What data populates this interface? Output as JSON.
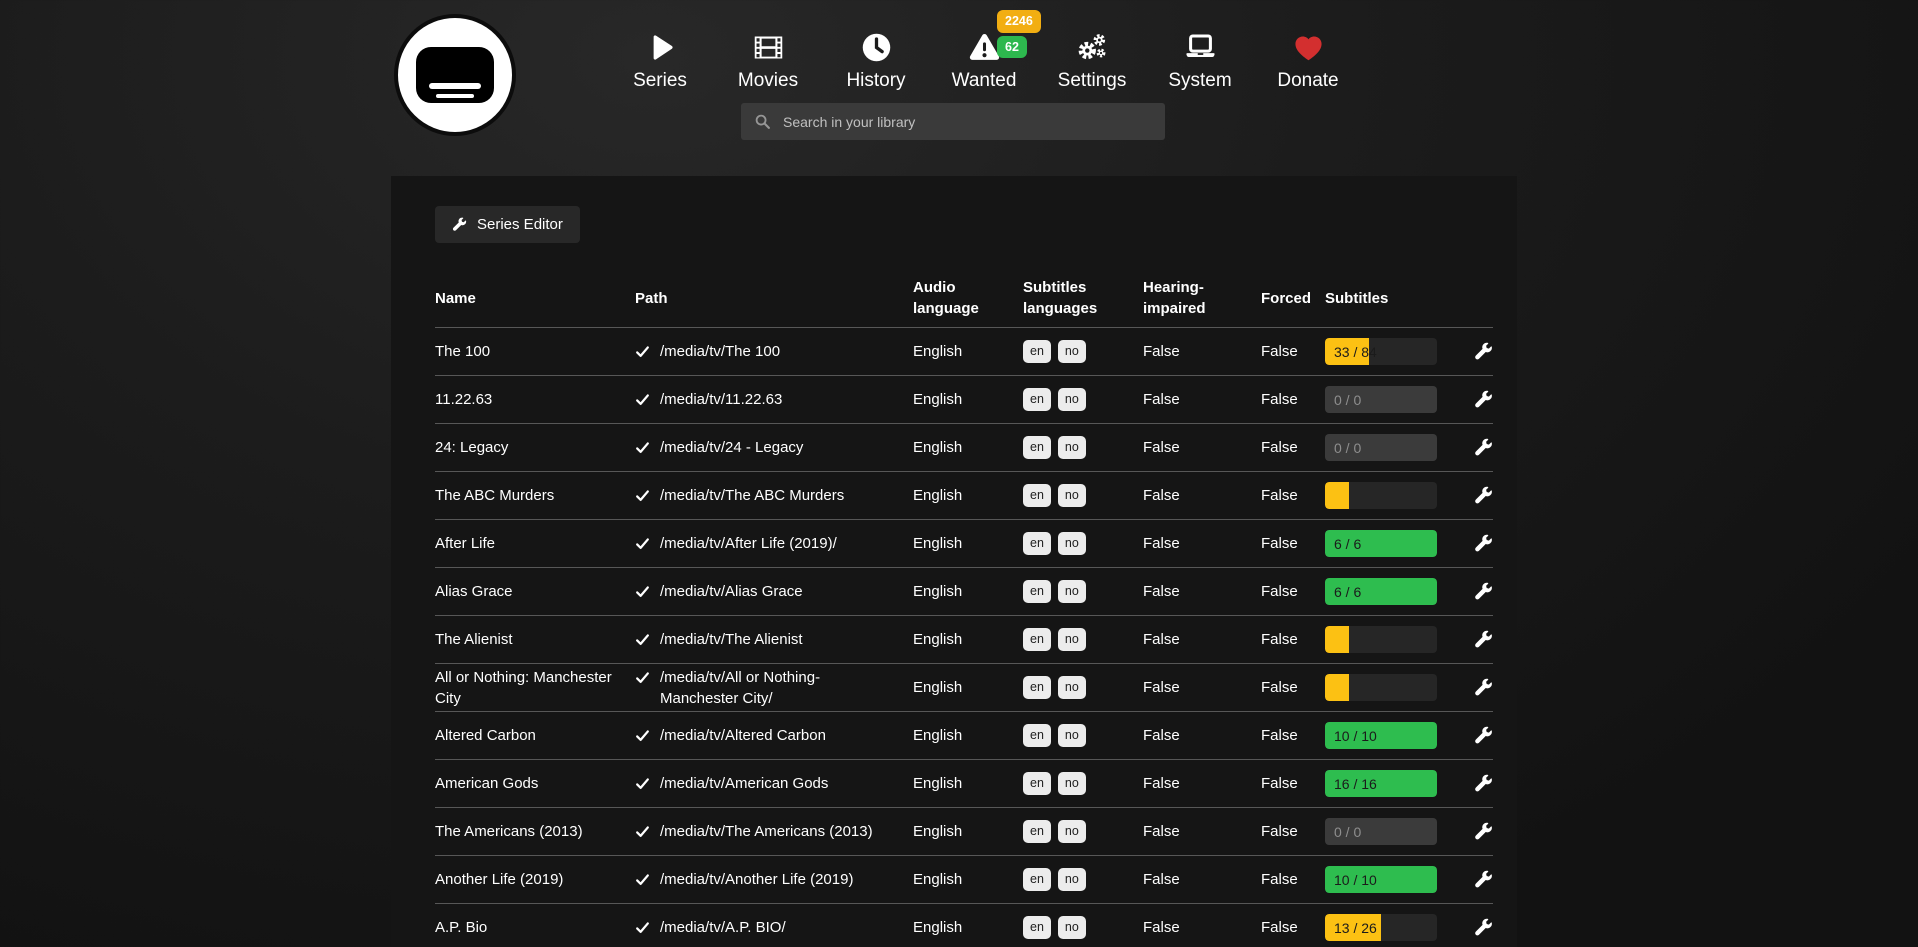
{
  "header": {
    "logo_name": "bazarr-logo",
    "nav_items": [
      {
        "label": "Series",
        "icon": "play"
      },
      {
        "label": "Movies",
        "icon": "film"
      },
      {
        "label": "History",
        "icon": "clock"
      },
      {
        "label": "Wanted",
        "icon": "warning",
        "badges": [
          {
            "value": "2246",
            "color": "#f2ae12"
          },
          {
            "value": "62",
            "color": "#2db84e"
          }
        ]
      },
      {
        "label": "Settings",
        "icon": "gears"
      },
      {
        "label": "System",
        "icon": "laptop"
      },
      {
        "label": "Donate",
        "icon": "heart",
        "icon_color": "#d32f2f"
      }
    ],
    "search": {
      "placeholder": "Search in your library"
    }
  },
  "toolbar": {
    "series_editor_label": "Series Editor"
  },
  "table": {
    "columns": [
      "Name",
      "Path",
      "Audio language",
      "Subtitles languages",
      "Hearing-impaired",
      "Forced",
      "Subtitles"
    ],
    "rows": [
      {
        "name": "The 100",
        "path": "/media/tv/The 100",
        "audio_language": "English",
        "subtitles_languages": [
          "en",
          "no"
        ],
        "hearing_impaired": "False",
        "forced": "False",
        "subtitles_progress": {
          "label": "33 / 84",
          "percent": 39,
          "state": "warning"
        }
      },
      {
        "name": "11.22.63",
        "path": "/media/tv/11.22.63",
        "audio_language": "English",
        "subtitles_languages": [
          "en",
          "no"
        ],
        "hearing_impaired": "False",
        "forced": "False",
        "subtitles_progress": {
          "label": "0 / 0",
          "percent": 0,
          "state": "empty"
        }
      },
      {
        "name": "24: Legacy",
        "path": "/media/tv/24 - Legacy",
        "audio_language": "English",
        "subtitles_languages": [
          "en",
          "no"
        ],
        "hearing_impaired": "False",
        "forced": "False",
        "subtitles_progress": {
          "label": "0 / 0",
          "percent": 0,
          "state": "empty"
        }
      },
      {
        "name": "The ABC Murders",
        "path": "/media/tv/The ABC Murders",
        "audio_language": "English",
        "subtitles_languages": [
          "en",
          "no"
        ],
        "hearing_impaired": "False",
        "forced": "False",
        "subtitles_progress": {
          "label": "",
          "percent": 21,
          "state": "warning"
        }
      },
      {
        "name": "After Life",
        "path": "/media/tv/After Life (2019)/",
        "audio_language": "English",
        "subtitles_languages": [
          "en",
          "no"
        ],
        "hearing_impaired": "False",
        "forced": "False",
        "subtitles_progress": {
          "label": "6 / 6",
          "percent": 100,
          "state": "success"
        }
      },
      {
        "name": "Alias Grace",
        "path": "/media/tv/Alias Grace",
        "audio_language": "English",
        "subtitles_languages": [
          "en",
          "no"
        ],
        "hearing_impaired": "False",
        "forced": "False",
        "subtitles_progress": {
          "label": "6 / 6",
          "percent": 100,
          "state": "success"
        }
      },
      {
        "name": "The Alienist",
        "path": "/media/tv/The Alienist",
        "audio_language": "English",
        "subtitles_languages": [
          "en",
          "no"
        ],
        "hearing_impaired": "False",
        "forced": "False",
        "subtitles_progress": {
          "label": "",
          "percent": 21,
          "state": "warning"
        }
      },
      {
        "name": "All or Nothing: Manchester City",
        "path": "/media/tv/All or Nothing- Manchester City/",
        "audio_language": "English",
        "subtitles_languages": [
          "en",
          "no"
        ],
        "hearing_impaired": "False",
        "forced": "False",
        "subtitles_progress": {
          "label": "",
          "percent": 21,
          "state": "warning"
        }
      },
      {
        "name": "Altered Carbon",
        "path": "/media/tv/Altered Carbon",
        "audio_language": "English",
        "subtitles_languages": [
          "en",
          "no"
        ],
        "hearing_impaired": "False",
        "forced": "False",
        "subtitles_progress": {
          "label": "10 / 10",
          "percent": 100,
          "state": "success"
        }
      },
      {
        "name": "American Gods",
        "path": "/media/tv/American Gods",
        "audio_language": "English",
        "subtitles_languages": [
          "en",
          "no"
        ],
        "hearing_impaired": "False",
        "forced": "False",
        "subtitles_progress": {
          "label": "16 / 16",
          "percent": 100,
          "state": "success"
        }
      },
      {
        "name": "The Americans (2013)",
        "path": "/media/tv/The Americans (2013)",
        "audio_language": "English",
        "subtitles_languages": [
          "en",
          "no"
        ],
        "hearing_impaired": "False",
        "forced": "False",
        "subtitles_progress": {
          "label": "0 / 0",
          "percent": 0,
          "state": "empty"
        }
      },
      {
        "name": "Another Life (2019)",
        "path": "/media/tv/Another Life (2019)",
        "audio_language": "English",
        "subtitles_languages": [
          "en",
          "no"
        ],
        "hearing_impaired": "False",
        "forced": "False",
        "subtitles_progress": {
          "label": "10 / 10",
          "percent": 100,
          "state": "success"
        }
      },
      {
        "name": "A.P. Bio",
        "path": "/media/tv/A.P. BIO/",
        "audio_language": "English",
        "subtitles_languages": [
          "en",
          "no"
        ],
        "hearing_impaired": "False",
        "forced": "False",
        "subtitles_progress": {
          "label": "13 / 26",
          "percent": 50,
          "state": "warning"
        }
      }
    ]
  },
  "colors": {
    "page_background": "#1e1e1e",
    "panel_background": "#151515",
    "progress_warning": "#fcc113",
    "progress_success": "#2ebd4f",
    "badge_warning": "#f2ae12",
    "badge_success": "#2db84e",
    "donate_heart": "#d32f2f"
  }
}
